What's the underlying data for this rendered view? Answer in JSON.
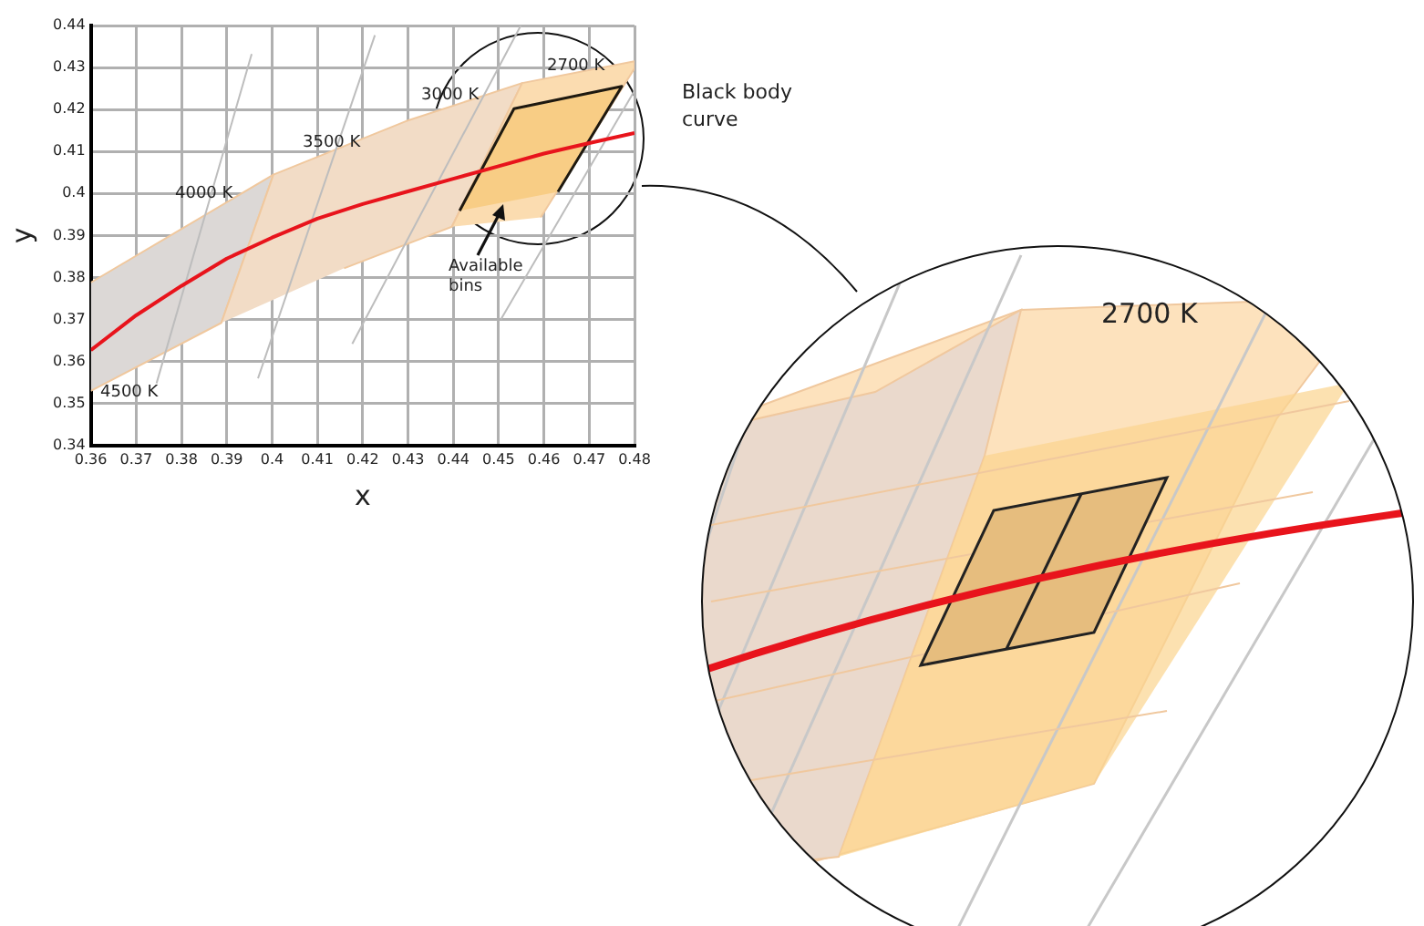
{
  "chart_data": {
    "type": "line",
    "xlabel": "x",
    "ylabel": "y",
    "xlim": [
      0.36,
      0.48
    ],
    "xticks": [
      0.36,
      0.37,
      0.38,
      0.39,
      0.4,
      0.41,
      0.42,
      0.43,
      0.44,
      0.45,
      0.46,
      0.47,
      0.48
    ],
    "ylim": [
      0.34,
      0.44
    ],
    "yticks": [
      0.34,
      0.35,
      0.36,
      0.37,
      0.38,
      0.39,
      0.4,
      0.41,
      0.42,
      0.43,
      0.44
    ],
    "grid": true,
    "legend": "right",
    "marker": "none",
    "series": [
      {
        "type": "area",
        "color": "#dcd8d6",
        "x": [
          0.36,
          0.4003,
          0.3888,
          0.36
        ],
        "values": [
          0.3788,
          0.4045,
          0.3692,
          0.353
        ]
      },
      {
        "type": "area",
        "color": "#f2dcc6",
        "x": [
          0.3888,
          0.4003,
          0.4295,
          0.4552,
          0.4397,
          0.4159
        ],
        "values": [
          0.3692,
          0.4045,
          0.4172,
          0.4263,
          0.3921,
          0.3822
        ]
      },
      {
        "type": "area",
        "color": "#fbdcb0",
        "x": [
          0.4397,
          0.4552,
          0.48,
          0.48,
          0.4593
        ],
        "values": [
          0.3921,
          0.4263,
          0.4315,
          0.4298,
          0.3943
        ]
      },
      {
        "type": "area",
        "color": "#f8cd85",
        "x": [
          0.4414,
          0.4534,
          0.4772,
          0.4631
        ],
        "values": [
          0.3959,
          0.4202,
          0.4255,
          0.4004
        ]
      },
      {
        "color": "#bdbdbd",
        "x": [
          0.3745,
          0.3955
        ],
        "values": [
          0.3548,
          0.4332
        ]
      },
      {
        "color": "#bdbdbd",
        "x": [
          0.3969,
          0.4227
        ],
        "values": [
          0.356,
          0.4377
        ]
      },
      {
        "color": "#bdbdbd",
        "x": [
          0.4177,
          0.4549
        ],
        "values": [
          0.3642,
          0.44
        ]
      },
      {
        "color": "#bdbdbd",
        "x": [
          0.4505,
          0.48
        ],
        "values": [
          0.37,
          0.4245
        ]
      },
      {
        "name": "Black body curve",
        "color": "#e8141c",
        "x": [
          0.36,
          0.37,
          0.38,
          0.39,
          0.4,
          0.41,
          0.42,
          0.43,
          0.44,
          0.45,
          0.46,
          0.47,
          0.48
        ],
        "values": [
          0.3627,
          0.371,
          0.378,
          0.3845,
          0.3895,
          0.394,
          0.3975,
          0.4005,
          0.4035,
          0.4065,
          0.4095,
          0.412,
          0.4144
        ]
      }
    ],
    "annotations": [
      "4500 K",
      "4000 K",
      "3500 K",
      "3000 K",
      "2700 K",
      "Available bins",
      "2700 K"
    ]
  }
}
